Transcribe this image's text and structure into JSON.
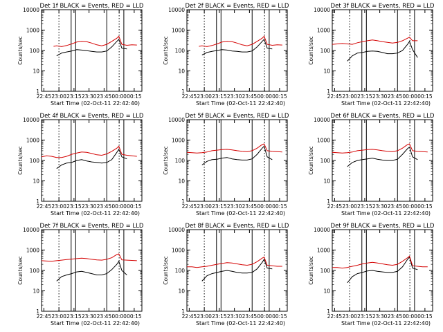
{
  "figure": {
    "colors": {
      "events": "#000000",
      "lld": "#d40000",
      "axes": "#000000",
      "background": "#ffffff"
    },
    "ylabel": "Counts/sec",
    "xlabel": "Start Time (02-Oct-11 22:42:40)",
    "yticks": [
      {
        "value": 1,
        "label": "1"
      },
      {
        "value": 10,
        "label": "10"
      },
      {
        "value": 100,
        "label": "100"
      },
      {
        "value": 1000,
        "label": "1000"
      },
      {
        "value": 10000,
        "label": "10000"
      }
    ],
    "xticks": [
      {
        "value": 2.33,
        "label": "22:45"
      },
      {
        "value": 17.33,
        "label": "23:00"
      },
      {
        "value": 32.33,
        "label": "23:15"
      },
      {
        "value": 47.33,
        "label": "23:30"
      },
      {
        "value": 62.33,
        "label": "23:45"
      },
      {
        "value": 77.33,
        "label": "00:00"
      },
      {
        "value": 92.33,
        "label": "00:15"
      }
    ]
  },
  "chart_data": [
    {
      "type": "line",
      "title": "Det 1f BLACK = Events, RED = LLD",
      "x_range_minutes": [
        0,
        100
      ],
      "ylim": [
        1,
        10000
      ],
      "yscale": "log",
      "dotted_markers_min": [
        17.33,
        77.33
      ],
      "solid_markers_min": [
        29.5,
        34,
        65,
        82
      ],
      "series": [
        {
          "name": "Events",
          "x": [
            15,
            20,
            25,
            30,
            35,
            40,
            45,
            50,
            55,
            60,
            65,
            70,
            75,
            77,
            80,
            85
          ],
          "y": [
            55,
            75,
            85,
            95,
            110,
            105,
            98,
            90,
            85,
            85,
            95,
            150,
            280,
            350,
            130,
            120
          ]
        },
        {
          "name": "LLD",
          "x": [
            12,
            15,
            20,
            25,
            30,
            35,
            40,
            45,
            50,
            55,
            60,
            65,
            70,
            75,
            77,
            80,
            85,
            90,
            95
          ],
          "y": [
            160,
            170,
            155,
            175,
            210,
            260,
            280,
            270,
            230,
            190,
            170,
            200,
            280,
            400,
            500,
            200,
            180,
            190,
            185
          ]
        }
      ]
    },
    {
      "type": "line",
      "title": "Det 2f BLACK = Events, RED = LLD",
      "x_range_minutes": [
        0,
        100
      ],
      "ylim": [
        1,
        10000
      ],
      "yscale": "log",
      "dotted_markers_min": [
        17.33,
        77.33
      ],
      "solid_markers_min": [
        29.5,
        34,
        65,
        82
      ],
      "series": [
        {
          "name": "Events",
          "x": [
            15,
            20,
            25,
            30,
            35,
            40,
            45,
            50,
            55,
            60,
            65,
            70,
            75,
            77,
            80,
            85
          ],
          "y": [
            60,
            80,
            90,
            100,
            110,
            105,
            95,
            90,
            85,
            85,
            95,
            150,
            280,
            350,
            130,
            120
          ]
        },
        {
          "name": "LLD",
          "x": [
            12,
            15,
            20,
            25,
            30,
            35,
            40,
            45,
            50,
            55,
            60,
            65,
            70,
            75,
            77,
            80,
            85,
            90,
            95
          ],
          "y": [
            160,
            170,
            155,
            175,
            210,
            260,
            280,
            270,
            230,
            190,
            170,
            200,
            280,
            400,
            500,
            200,
            180,
            190,
            185
          ]
        }
      ]
    },
    {
      "type": "line",
      "title": "Det 3f BLACK = Events, RED = LLD",
      "x_range_minutes": [
        0,
        100
      ],
      "ylim": [
        1,
        10000
      ],
      "yscale": "log",
      "dotted_markers_min": [
        17.33,
        77.33
      ],
      "solid_markers_min": [
        29.5,
        34,
        65,
        82
      ],
      "series": [
        {
          "name": "Events",
          "x": [
            15,
            20,
            25,
            30,
            35,
            40,
            45,
            50,
            55,
            60,
            65,
            70,
            75,
            77,
            80,
            85
          ],
          "y": [
            30,
            55,
            75,
            80,
            90,
            95,
            90,
            80,
            70,
            70,
            75,
            100,
            200,
            280,
            110,
            45
          ]
        },
        {
          "name": "LLD",
          "x": [
            0,
            5,
            10,
            15,
            20,
            25,
            30,
            35,
            40,
            45,
            50,
            55,
            60,
            65,
            70,
            75,
            77,
            80,
            85
          ],
          "y": [
            200,
            210,
            220,
            210,
            200,
            240,
            270,
            300,
            330,
            300,
            270,
            250,
            230,
            250,
            300,
            400,
            450,
            300,
            300
          ]
        }
      ]
    },
    {
      "type": "line",
      "title": "Det 4f BLACK = Events, RED = LLD",
      "x_range_minutes": [
        0,
        100
      ],
      "ylim": [
        1,
        10000
      ],
      "yscale": "log",
      "dotted_markers_min": [
        17.33,
        77.33
      ],
      "solid_markers_min": [
        29.5,
        34,
        65,
        82
      ],
      "series": [
        {
          "name": "Events",
          "x": [
            15,
            20,
            25,
            30,
            35,
            40,
            45,
            50,
            55,
            60,
            65,
            70,
            75,
            77,
            80,
            85
          ],
          "y": [
            40,
            60,
            75,
            80,
            100,
            110,
            95,
            85,
            80,
            75,
            80,
            110,
            250,
            350,
            150,
            120
          ]
        },
        {
          "name": "LLD",
          "x": [
            0,
            5,
            10,
            15,
            20,
            25,
            30,
            35,
            40,
            45,
            50,
            55,
            60,
            65,
            70,
            75,
            77,
            80,
            85,
            90,
            95
          ],
          "y": [
            150,
            170,
            160,
            140,
            140,
            160,
            200,
            230,
            260,
            250,
            220,
            190,
            180,
            210,
            280,
            400,
            500,
            200,
            180,
            170,
            160
          ]
        }
      ]
    },
    {
      "type": "line",
      "title": "Det 5f BLACK = Events, RED = LLD",
      "x_range_minutes": [
        0,
        100
      ],
      "ylim": [
        1,
        10000
      ],
      "yscale": "log",
      "dotted_markers_min": [
        17.33,
        77.33
      ],
      "solid_markers_min": [
        29.5,
        34,
        65,
        82
      ],
      "series": [
        {
          "name": "Events",
          "x": [
            15,
            20,
            25,
            30,
            35,
            40,
            45,
            50,
            55,
            60,
            65,
            70,
            75,
            77,
            80,
            85
          ],
          "y": [
            60,
            90,
            110,
            115,
            130,
            140,
            120,
            110,
            105,
            105,
            120,
            200,
            400,
            500,
            150,
            110
          ]
        },
        {
          "name": "LLD",
          "x": [
            0,
            5,
            10,
            15,
            20,
            25,
            30,
            35,
            40,
            45,
            50,
            55,
            60,
            65,
            70,
            75,
            77,
            80,
            85,
            90,
            95
          ],
          "y": [
            250,
            240,
            230,
            240,
            260,
            300,
            320,
            340,
            350,
            330,
            300,
            280,
            270,
            300,
            400,
            600,
            650,
            300,
            280,
            270,
            260
          ]
        }
      ]
    },
    {
      "type": "line",
      "title": "Det 6f BLACK = Events, RED = LLD",
      "x_range_minutes": [
        0,
        100
      ],
      "ylim": [
        1,
        10000
      ],
      "yscale": "log",
      "dotted_markers_min": [
        17.33,
        77.33
      ],
      "solid_markers_min": [
        29.5,
        34,
        65,
        82
      ],
      "series": [
        {
          "name": "Events",
          "x": [
            15,
            20,
            25,
            30,
            35,
            40,
            45,
            50,
            55,
            60,
            65,
            70,
            75,
            77,
            80,
            85
          ],
          "y": [
            50,
            80,
            100,
            110,
            120,
            130,
            115,
            105,
            100,
            100,
            115,
            200,
            380,
            450,
            150,
            110
          ]
        },
        {
          "name": "LLD",
          "x": [
            0,
            5,
            10,
            15,
            20,
            25,
            30,
            35,
            40,
            45,
            50,
            55,
            60,
            65,
            70,
            75,
            77,
            80,
            85,
            90,
            95
          ],
          "y": [
            250,
            240,
            230,
            240,
            260,
            300,
            320,
            340,
            350,
            330,
            300,
            280,
            270,
            300,
            400,
            600,
            650,
            300,
            280,
            270,
            260
          ]
        }
      ]
    },
    {
      "type": "line",
      "title": "Det 7f BLACK = Events, RED = LLD",
      "x_range_minutes": [
        0,
        100
      ],
      "ylim": [
        1,
        10000
      ],
      "yscale": "log",
      "dotted_markers_min": [
        17.33,
        77.33
      ],
      "solid_markers_min": [
        29.5,
        34,
        65,
        82
      ],
      "series": [
        {
          "name": "Events",
          "x": [
            15,
            20,
            25,
            30,
            35,
            40,
            45,
            50,
            55,
            60,
            65,
            70,
            75,
            77,
            80,
            85
          ],
          "y": [
            30,
            50,
            60,
            70,
            85,
            90,
            80,
            70,
            60,
            60,
            70,
            110,
            200,
            280,
            100,
            60
          ]
        },
        {
          "name": "LLD",
          "x": [
            0,
            5,
            10,
            15,
            20,
            25,
            30,
            35,
            40,
            45,
            50,
            55,
            60,
            65,
            70,
            75,
            77,
            80,
            85,
            90,
            95
          ],
          "y": [
            300,
            290,
            280,
            300,
            320,
            340,
            360,
            380,
            400,
            380,
            350,
            330,
            320,
            350,
            420,
            600,
            650,
            330,
            320,
            310,
            300
          ]
        }
      ]
    },
    {
      "type": "line",
      "title": "Det 8f BLACK = Events, RED = LLD",
      "x_range_minutes": [
        0,
        100
      ],
      "ylim": [
        1,
        10000
      ],
      "yscale": "log",
      "dotted_markers_min": [
        17.33,
        77.33
      ],
      "solid_markers_min": [
        29.5,
        34,
        65,
        82
      ],
      "series": [
        {
          "name": "Events",
          "x": [
            15,
            20,
            25,
            30,
            35,
            40,
            45,
            50,
            55,
            60,
            65,
            70,
            75,
            77,
            80,
            85
          ],
          "y": [
            30,
            55,
            70,
            80,
            90,
            100,
            90,
            80,
            75,
            75,
            80,
            120,
            250,
            350,
            130,
            120
          ]
        },
        {
          "name": "LLD",
          "x": [
            0,
            5,
            10,
            15,
            20,
            25,
            30,
            35,
            40,
            45,
            50,
            55,
            60,
            65,
            70,
            75,
            77,
            80,
            85,
            90,
            95
          ],
          "y": [
            150,
            150,
            140,
            150,
            160,
            180,
            200,
            220,
            240,
            230,
            210,
            190,
            180,
            200,
            270,
            400,
            450,
            180,
            170,
            160,
            160
          ]
        }
      ]
    },
    {
      "type": "line",
      "title": "Det 9f BLACK = Events, RED = LLD",
      "x_range_minutes": [
        0,
        100
      ],
      "ylim": [
        1,
        10000
      ],
      "yscale": "log",
      "dotted_markers_min": [
        17.33,
        77.33
      ],
      "solid_markers_min": [
        29.5,
        34,
        65,
        82
      ],
      "series": [
        {
          "name": "Events",
          "x": [
            15,
            20,
            25,
            30,
            35,
            40,
            45,
            50,
            55,
            60,
            65,
            70,
            75,
            77,
            80,
            85
          ],
          "y": [
            25,
            50,
            70,
            80,
            95,
            100,
            90,
            85,
            80,
            80,
            90,
            150,
            350,
            450,
            130,
            110
          ]
        },
        {
          "name": "LLD",
          "x": [
            0,
            5,
            10,
            15,
            20,
            25,
            30,
            35,
            40,
            45,
            50,
            55,
            60,
            65,
            70,
            75,
            77,
            80,
            85,
            90,
            95
          ],
          "y": [
            140,
            140,
            130,
            140,
            160,
            180,
            210,
            230,
            250,
            230,
            210,
            190,
            180,
            200,
            280,
            420,
            500,
            170,
            160,
            150,
            150
          ]
        }
      ]
    }
  ]
}
